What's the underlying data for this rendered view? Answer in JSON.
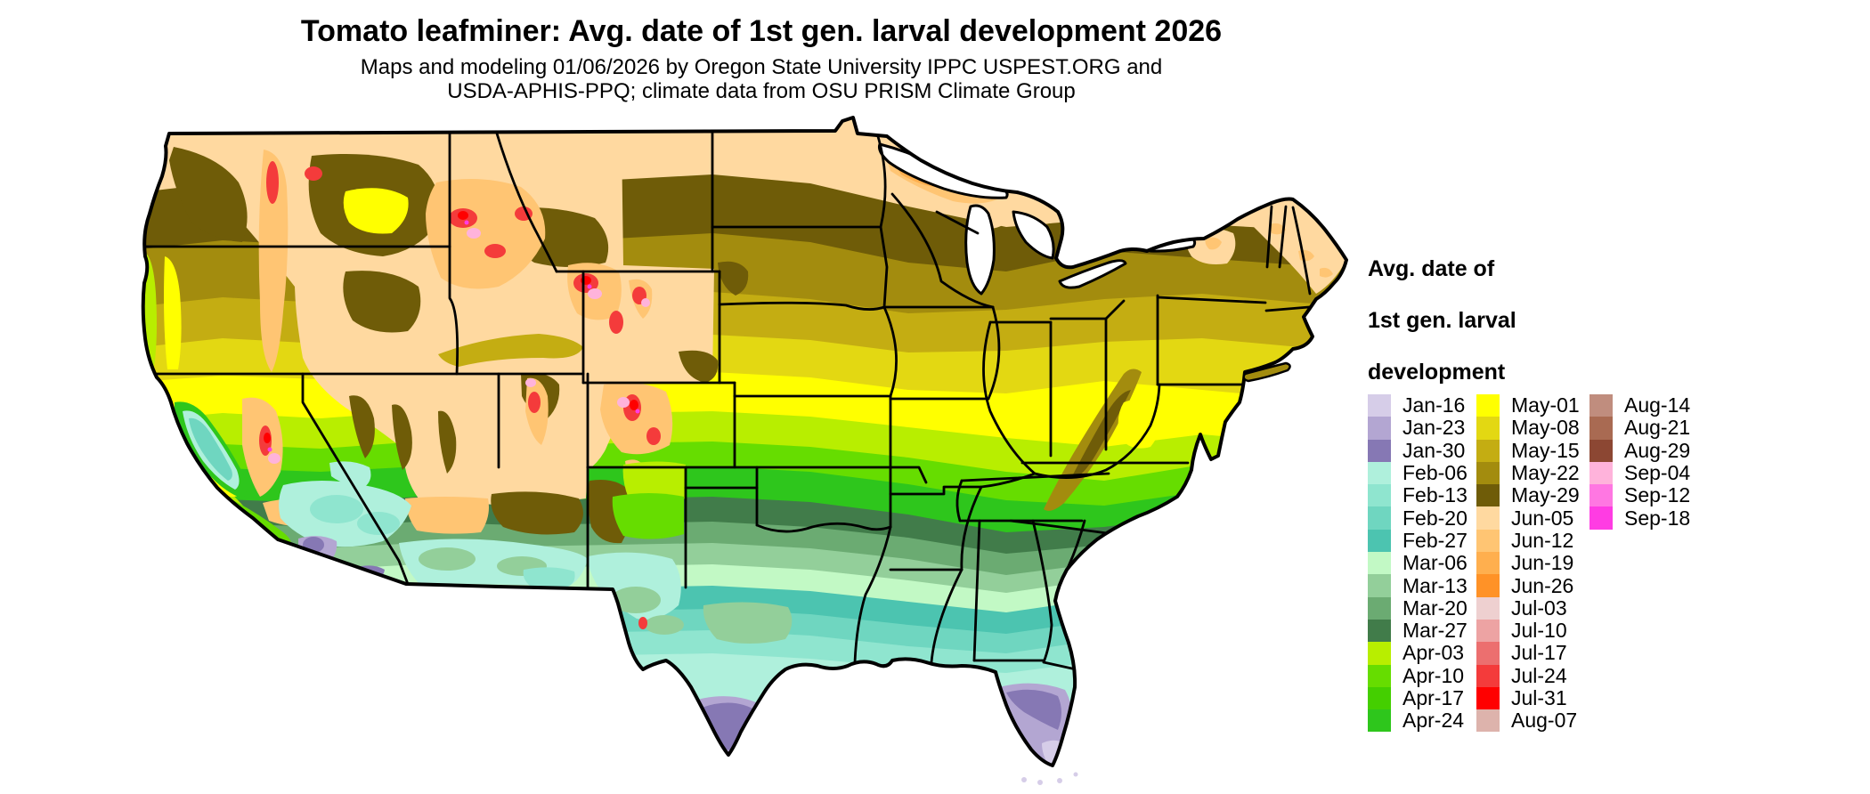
{
  "title": "Tomato leafminer: Avg. date of 1st gen. larval development 2026",
  "subtitle": {
    "line1": "Maps and modeling 01/06/2026 by Oregon State University IPPC USPEST.ORG and",
    "line2": "USDA-APHIS-PPQ; climate data from OSU PRISM Climate Group"
  },
  "legend": {
    "title_lines": [
      "Avg. date of",
      "1st gen. larval",
      "development"
    ],
    "columns": [
      [
        {
          "label": "Jan-16",
          "color": "#d6cde8"
        },
        {
          "label": "Jan-23",
          "color": "#b3a6d2"
        },
        {
          "label": "Jan-30",
          "color": "#8678b4"
        },
        {
          "label": "Feb-06",
          "color": "#aff0dc"
        },
        {
          "label": "Feb-13",
          "color": "#8fe5cf"
        },
        {
          "label": "Feb-20",
          "color": "#6fd6c0"
        },
        {
          "label": "Feb-27",
          "color": "#4cc4b0"
        },
        {
          "label": "Mar-06",
          "color": "#c2f9c5"
        },
        {
          "label": "Mar-13",
          "color": "#93cf9a"
        },
        {
          "label": "Mar-20",
          "color": "#6bab72"
        },
        {
          "label": "Mar-27",
          "color": "#417c4a"
        },
        {
          "label": "Apr-03",
          "color": "#b8ee00"
        },
        {
          "label": "Apr-10",
          "color": "#66dd00"
        },
        {
          "label": "Apr-17",
          "color": "#44cf00"
        },
        {
          "label": "Apr-24",
          "color": "#2ec61c"
        }
      ],
      [
        {
          "label": "May-01",
          "color": "#ffff00"
        },
        {
          "label": "May-08",
          "color": "#e3d812"
        },
        {
          "label": "May-15",
          "color": "#c4ad12"
        },
        {
          "label": "May-22",
          "color": "#a38c0e"
        },
        {
          "label": "May-29",
          "color": "#6f5c08"
        },
        {
          "label": "Jun-05",
          "color": "#ffd9a0"
        },
        {
          "label": "Jun-12",
          "color": "#ffc573"
        },
        {
          "label": "Jun-19",
          "color": "#ffaf4e"
        },
        {
          "label": "Jun-26",
          "color": "#ff9227"
        },
        {
          "label": "Jul-03",
          "color": "#eed0d0"
        },
        {
          "label": "Jul-10",
          "color": "#eda3a3"
        },
        {
          "label": "Jul-17",
          "color": "#ec6f6f"
        },
        {
          "label": "Jul-24",
          "color": "#f43b3b"
        },
        {
          "label": "Jul-31",
          "color": "#ff0000"
        },
        {
          "label": "Aug-07",
          "color": "#ddb3ac"
        }
      ],
      [
        {
          "label": "Aug-14",
          "color": "#c08d7e"
        },
        {
          "label": "Aug-21",
          "color": "#a96a52"
        },
        {
          "label": "Aug-29",
          "color": "#8c4733"
        },
        {
          "label": "Sep-04",
          "color": "#ffb3db"
        },
        {
          "label": "Sep-12",
          "color": "#ff77e2"
        },
        {
          "label": "Sep-18",
          "color": "#ff3ce3"
        }
      ]
    ]
  },
  "chart_data": {
    "type": "heatmap",
    "subtype": "phenology-choropleth-map",
    "region": "Continental United States",
    "title": "Tomato leafminer: Avg. date of 1st gen. larval development 2026",
    "variable": "Avg. date of 1st gen. larval development",
    "model_date_shown": "01/06/2026",
    "legend_position": "right",
    "scale_bins": [
      "Jan-16",
      "Jan-23",
      "Jan-30",
      "Feb-06",
      "Feb-13",
      "Feb-20",
      "Feb-27",
      "Mar-06",
      "Mar-13",
      "Mar-20",
      "Mar-27",
      "Apr-03",
      "Apr-10",
      "Apr-17",
      "Apr-24",
      "May-01",
      "May-08",
      "May-15",
      "May-22",
      "May-29",
      "Jun-05",
      "Jun-12",
      "Jun-19",
      "Jun-26",
      "Jul-03",
      "Jul-10",
      "Jul-17",
      "Jul-24",
      "Jul-31",
      "Aug-07",
      "Aug-14",
      "Aug-21",
      "Aug-29",
      "Sep-04",
      "Sep-12",
      "Sep-18"
    ],
    "scale_colors": [
      "#d6cde8",
      "#b3a6d2",
      "#8678b4",
      "#aff0dc",
      "#8fe5cf",
      "#6fd6c0",
      "#4cc4b0",
      "#c2f9c5",
      "#93cf9a",
      "#6bab72",
      "#417c4a",
      "#b8ee00",
      "#66dd00",
      "#44cf00",
      "#2ec61c",
      "#ffff00",
      "#e3d812",
      "#c4ad12",
      "#a38c0e",
      "#6f5c08",
      "#ffd9a0",
      "#ffc573",
      "#ffaf4e",
      "#ff9227",
      "#eed0d0",
      "#eda3a3",
      "#ec6f6f",
      "#f43b3b",
      "#ff0000",
      "#ddb3ac",
      "#c08d7e",
      "#a96a52",
      "#8c4733",
      "#ffb3db",
      "#ff77e2",
      "#ff3ce3"
    ],
    "spatial_pattern_notes": "Earliest dates (Jan-Feb, purple/teal) in south Texas, south Florida, Gulf Coast, low deserts of CA/AZ and CA Central Valley; Mar-Apr greens across the South; May yellows/olives across the Midwest and Northeast; Jun tans in the northern plains, upper Great Lakes and Maine; Jul-Sep reds/pinks only in high western mountains."
  }
}
